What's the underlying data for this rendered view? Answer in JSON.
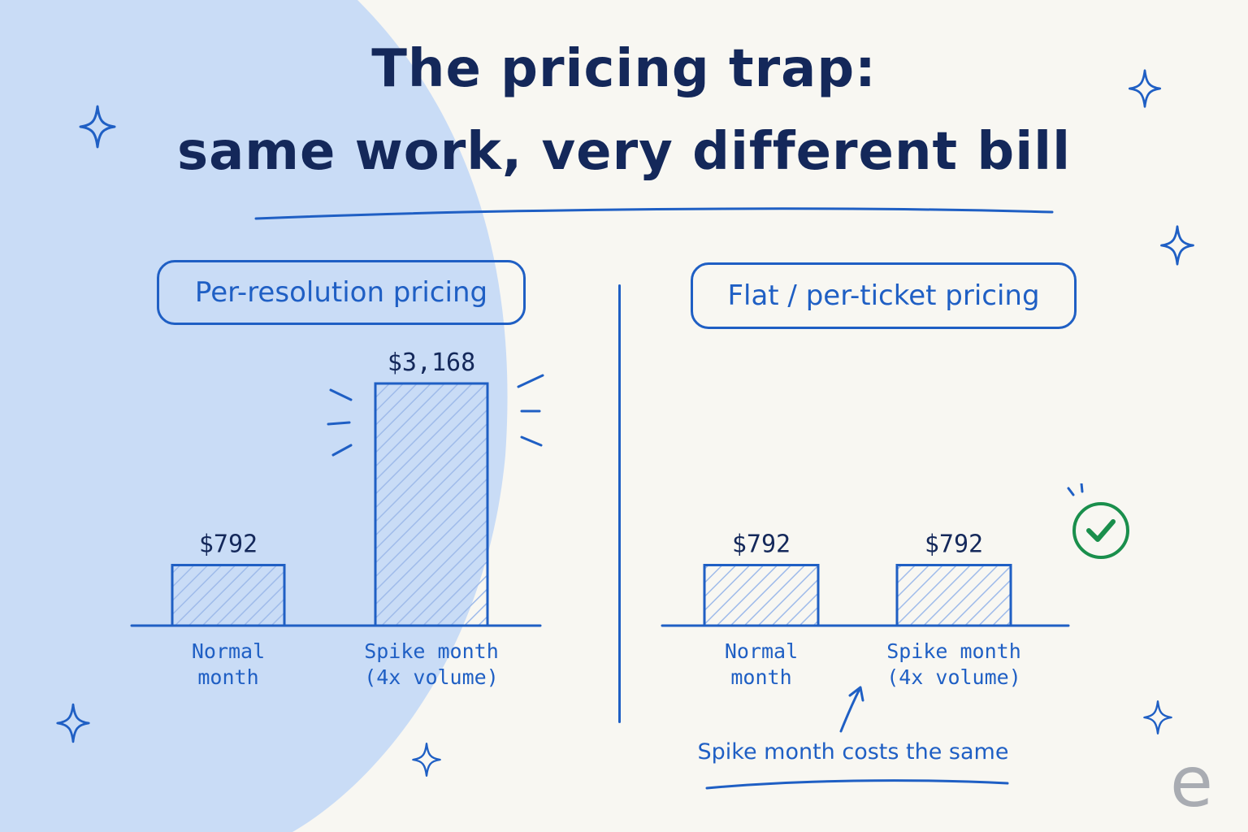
{
  "title": {
    "line1": "The pricing trap:",
    "line2": "same work, very different bill"
  },
  "colors": {
    "ink": "#14285a",
    "accent": "#1f5fc4",
    "hatch": "#9fbbea",
    "background": "#f8f7f2",
    "blob": "#c9dcf6",
    "check": "#1a8f4c",
    "logo": "#a9acb2"
  },
  "chart_data": [
    {
      "type": "bar",
      "title": "Per-resolution pricing",
      "categories": [
        "Normal month",
        "Spike month (4x volume)"
      ],
      "category_lines": [
        [
          "Normal",
          "month"
        ],
        [
          "Spike month",
          "(4x volume)"
        ]
      ],
      "values": [
        792,
        3168
      ],
      "value_labels": [
        "$792",
        "$3,168"
      ],
      "ylim": [
        0,
        3168
      ],
      "grid": false
    },
    {
      "type": "bar",
      "title": "Flat / per-ticket pricing",
      "categories": [
        "Normal month",
        "Spike month (4x volume)"
      ],
      "category_lines": [
        [
          "Normal",
          "month"
        ],
        [
          "Spike month",
          "(4x volume)"
        ]
      ],
      "values": [
        792,
        792
      ],
      "value_labels": [
        "$792",
        "$792"
      ],
      "ylim": [
        0,
        3168
      ],
      "grid": false
    }
  ],
  "annotation": {
    "text": "Spike month costs the same"
  },
  "icons": {
    "check": "check-circle-icon",
    "sparkle": "sparkle-icon",
    "logo": "e"
  }
}
